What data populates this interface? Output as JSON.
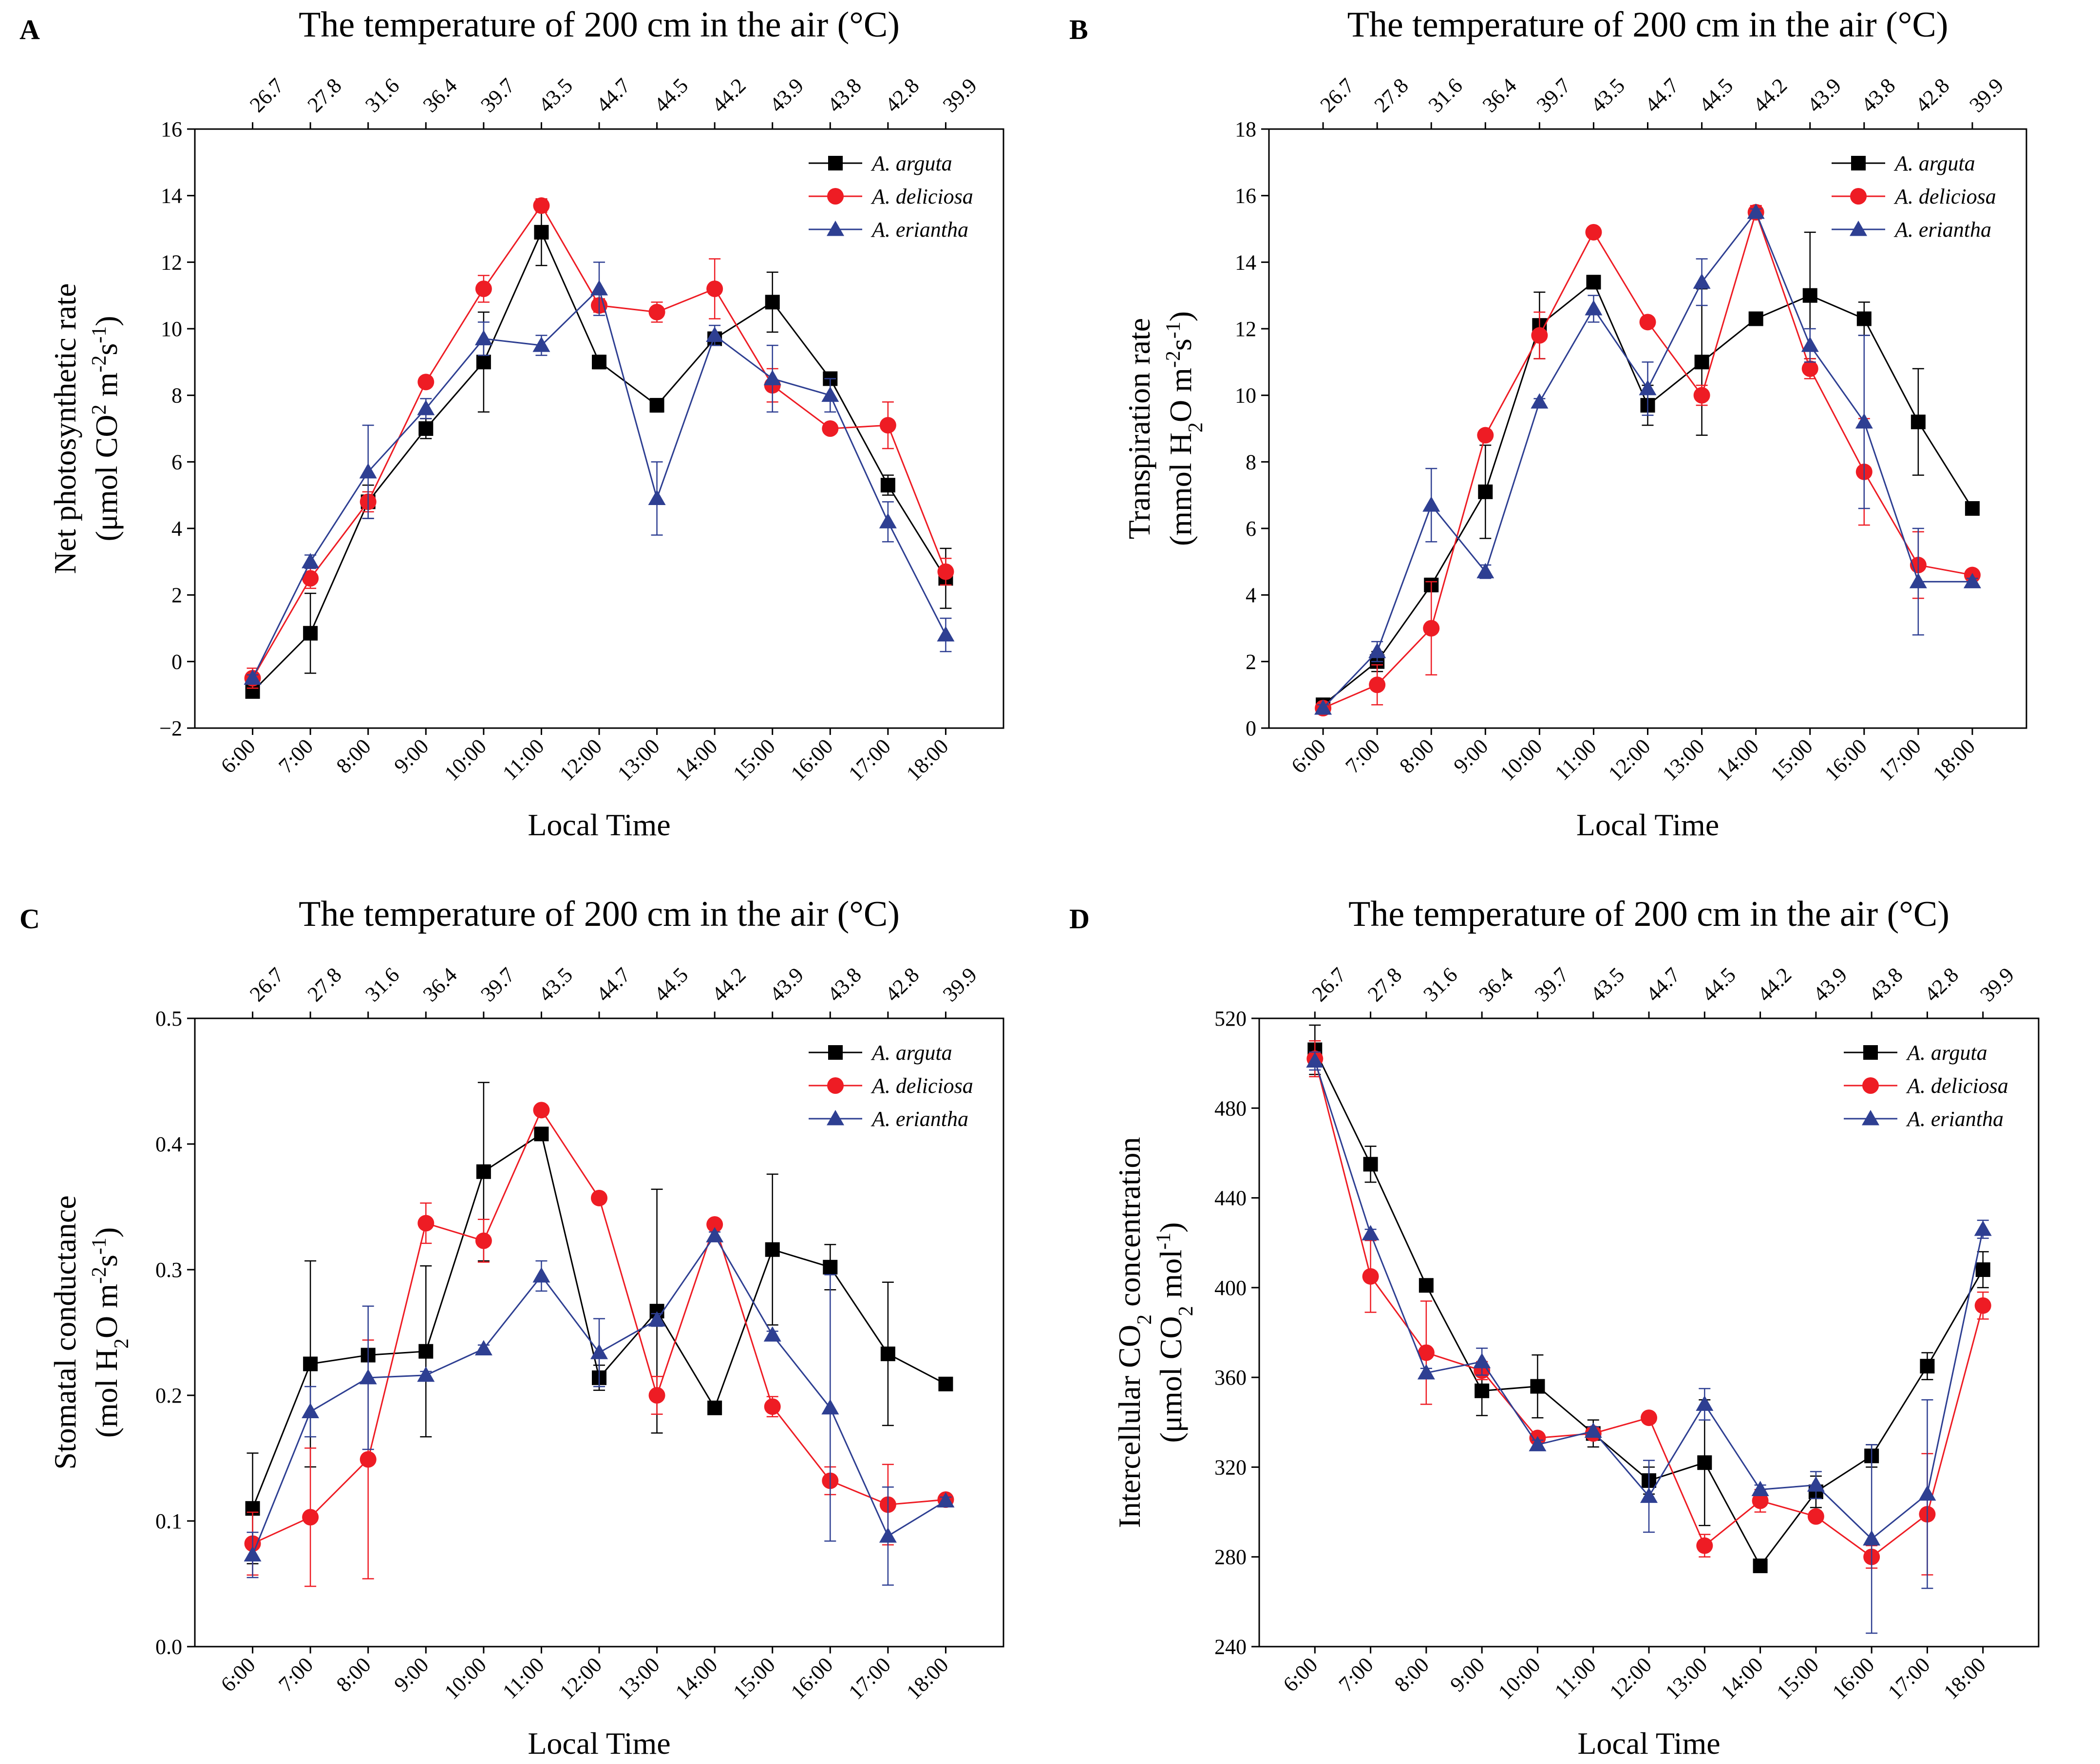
{
  "colors": {
    "arguta": "#000000",
    "deliciosa": "#ee1c24",
    "eriantha": "#2e3f92"
  },
  "chart_data": [
    {
      "panel": "A",
      "type": "line",
      "title": "The temperature of 200 cm in the air  (°C)",
      "top_ticks": [
        "26.7",
        "27.8",
        "31.6",
        "36.4",
        "39.7",
        "43.5",
        "44.7",
        "44.5",
        "44.2",
        "43.9",
        "43.8",
        "42.8",
        "39.9"
      ],
      "categories": [
        "6:00",
        "7:00",
        "8:00",
        "9:00",
        "10:00",
        "11:00",
        "12:00",
        "13:00",
        "14:00",
        "15:00",
        "16:00",
        "17:00",
        "18:00"
      ],
      "xlabel": "Local Time",
      "ylabel_lines": [
        "Net photosynthetic rate",
        "(μmol CO",
        "2",
        " m",
        "-2",
        "s",
        "-1",
        ")"
      ],
      "ylim": [
        -2,
        16
      ],
      "yticks": [
        -2,
        0,
        2,
        4,
        6,
        8,
        10,
        12,
        14,
        16
      ],
      "ytick_labels": [
        "−2",
        "0",
        "2",
        "4",
        "6",
        "8",
        "10",
        "12",
        "14",
        "16"
      ],
      "series": [
        {
          "name": "A. arguta",
          "marker": "square",
          "color": "#000000",
          "values": [
            -0.9,
            0.85,
            4.8,
            7.0,
            9.0,
            12.9,
            9.0,
            7.7,
            9.7,
            10.8,
            8.5,
            5.3,
            2.5
          ],
          "errors": [
            0.1,
            1.2,
            0.5,
            0.3,
            1.5,
            1.0,
            0.2,
            0.2,
            0.2,
            0.9,
            0.2,
            0.3,
            0.9
          ]
        },
        {
          "name": "A. deliciosa",
          "marker": "circle",
          "color": "#ee1c24",
          "values": [
            -0.5,
            2.5,
            4.8,
            8.4,
            11.2,
            13.7,
            10.7,
            10.5,
            11.2,
            8.3,
            7.0,
            7.1,
            2.7
          ],
          "errors": [
            0.3,
            0.3,
            0.3,
            0.1,
            0.4,
            0.2,
            0.2,
            0.3,
            0.9,
            0.5,
            0.1,
            0.7,
            0.4
          ]
        },
        {
          "name": "A. eriantha",
          "marker": "triangle",
          "color": "#2e3f92",
          "values": [
            -0.5,
            3.0,
            5.7,
            7.6,
            9.7,
            9.5,
            11.2,
            4.9,
            9.8,
            8.5,
            8.0,
            4.2,
            0.8
          ],
          "errors": [
            0.1,
            0.2,
            1.4,
            0.3,
            0.5,
            0.3,
            0.8,
            1.1,
            0.3,
            1.0,
            0.5,
            0.6,
            0.5
          ]
        }
      ],
      "legend": [
        "A. arguta",
        "A. deliciosa",
        "A. eriantha"
      ]
    },
    {
      "panel": "B",
      "type": "line",
      "title": "The temperature of 200 cm in the air  (°C)",
      "top_ticks": [
        "26.7",
        "27.8",
        "31.6",
        "36.4",
        "39.7",
        "43.5",
        "44.7",
        "44.5",
        "44.2",
        "43.9",
        "43.8",
        "42.8",
        "39.9"
      ],
      "categories": [
        "6:00",
        "7:00",
        "8:00",
        "9:00",
        "10:00",
        "11:00",
        "12:00",
        "13:00",
        "14:00",
        "15:00",
        "16:00",
        "17:00",
        "18:00"
      ],
      "xlabel": "Local Time",
      "ylabel_lines": [
        "Transpiration rate",
        "(mmol H",
        "2",
        "O m",
        "-2",
        "s",
        "-1",
        ")"
      ],
      "ylim": [
        0,
        18
      ],
      "yticks": [
        0,
        2,
        4,
        6,
        8,
        10,
        12,
        14,
        16,
        18
      ],
      "ytick_labels": [
        "0",
        "2",
        "4",
        "6",
        "8",
        "10",
        "12",
        "14",
        "16",
        "18"
      ],
      "series": [
        {
          "name": "A. arguta",
          "marker": "square",
          "color": "#000000",
          "values": [
            0.7,
            2.0,
            4.3,
            7.1,
            12.1,
            13.4,
            9.7,
            11.0,
            12.3,
            13.0,
            12.3,
            9.2,
            6.6
          ],
          "errors": [
            0.1,
            0.3,
            0.2,
            1.4,
            1.0,
            0.2,
            0.6,
            2.2,
            0.1,
            1.9,
            0.5,
            1.6,
            0.1
          ]
        },
        {
          "name": "A. deliciosa",
          "marker": "circle",
          "color": "#ee1c24",
          "values": [
            0.6,
            1.3,
            3.0,
            8.8,
            11.8,
            14.9,
            12.2,
            10.0,
            15.5,
            10.8,
            7.7,
            4.9,
            4.6
          ],
          "errors": [
            0.1,
            0.6,
            1.4,
            0.1,
            0.7,
            0.1,
            0.1,
            0.3,
            0.2,
            0.3,
            1.6,
            1.0,
            0.1
          ]
        },
        {
          "name": "A. eriantha",
          "marker": "triangle",
          "color": "#2e3f92",
          "values": [
            0.6,
            2.3,
            6.7,
            4.7,
            9.8,
            12.6,
            10.2,
            13.4,
            15.5,
            11.5,
            9.2,
            4.4,
            4.4
          ],
          "errors": [
            0.1,
            0.3,
            1.1,
            0.2,
            0.1,
            0.4,
            0.8,
            0.7,
            0.1,
            0.5,
            2.6,
            1.6,
            0.1
          ]
        }
      ],
      "legend": [
        "A. arguta",
        "A. deliciosa",
        "A. eriantha"
      ]
    },
    {
      "panel": "C",
      "type": "line",
      "title": "The temperature of 200 cm in the air  (°C)",
      "top_ticks": [
        "26.7",
        "27.8",
        "31.6",
        "36.4",
        "39.7",
        "43.5",
        "44.7",
        "44.5",
        "44.2",
        "43.9",
        "43.8",
        "42.8",
        "39.9"
      ],
      "categories": [
        "6:00",
        "7:00",
        "8:00",
        "9:00",
        "10:00",
        "11:00",
        "12:00",
        "13:00",
        "14:00",
        "15:00",
        "16:00",
        "17:00",
        "18:00"
      ],
      "xlabel": "Local Time",
      "ylabel_lines": [
        "Stomatal conductance",
        "(mol H",
        "2",
        "O m",
        "-2",
        "s",
        "-1",
        ")"
      ],
      "ylim": [
        0.0,
        0.5
      ],
      "yticks": [
        0.0,
        0.1,
        0.2,
        0.3,
        0.4,
        0.5
      ],
      "ytick_labels": [
        "0.0",
        "0.1",
        "0.2",
        "0.3",
        "0.4",
        "0.5"
      ],
      "series": [
        {
          "name": "A. arguta",
          "marker": "square",
          "color": "#000000",
          "values": [
            0.11,
            0.225,
            0.232,
            0.235,
            0.378,
            0.408,
            0.214,
            0.267,
            0.19,
            0.316,
            0.302,
            0.233,
            0.209
          ],
          "errors": [
            0.044,
            0.082,
            0.005,
            0.068,
            0.071,
            0.005,
            0.01,
            0.097,
            0.002,
            0.06,
            0.018,
            0.057,
            0.002
          ]
        },
        {
          "name": "A. deliciosa",
          "marker": "circle",
          "color": "#ee1c24",
          "values": [
            0.082,
            0.103,
            0.149,
            0.337,
            0.323,
            0.427,
            0.357,
            0.2,
            0.336,
            0.191,
            0.132,
            0.113,
            0.117
          ],
          "errors": [
            0.025,
            0.055,
            0.095,
            0.016,
            0.017,
            0.002,
            0.002,
            0.015,
            0.002,
            0.008,
            0.011,
            0.032,
            0.003
          ]
        },
        {
          "name": "A. eriantha",
          "marker": "triangle",
          "color": "#2e3f92",
          "values": [
            0.073,
            0.187,
            0.214,
            0.216,
            0.237,
            0.295,
            0.234,
            0.26,
            0.327,
            0.248,
            0.19,
            0.088,
            0.116
          ],
          "errors": [
            0.018,
            0.02,
            0.057,
            0.003,
            0.003,
            0.012,
            0.027,
            0.005,
            0.003,
            0.003,
            0.106,
            0.039,
            0.003
          ]
        }
      ],
      "legend": [
        "A. arguta",
        "A. deliciosa",
        "A. eriantha"
      ]
    },
    {
      "panel": "D",
      "type": "line",
      "title": "The temperature of 200 cm in the air  (°C)",
      "top_ticks": [
        "26.7",
        "27.8",
        "31.6",
        "36.4",
        "39.7",
        "43.5",
        "44.7",
        "44.5",
        "44.2",
        "43.9",
        "43.8",
        "42.8",
        "39.9"
      ],
      "categories": [
        "6:00",
        "7:00",
        "8:00",
        "9:00",
        "10:00",
        "11:00",
        "12:00",
        "13:00",
        "14:00",
        "15:00",
        "16:00",
        "17:00",
        "18:00"
      ],
      "xlabel": "Local Time",
      "ylabel_lines": [
        "Intercellular CO",
        "2",
        " concentration",
        "(μmol CO",
        "2",
        " mol",
        "-1",
        ")"
      ],
      "ylim": [
        240,
        520
      ],
      "yticks": [
        240,
        280,
        320,
        360,
        400,
        440,
        480,
        520
      ],
      "ytick_labels": [
        "240",
        "280",
        "320",
        "360",
        "400",
        "440",
        "480",
        "520"
      ],
      "series": [
        {
          "name": "A. arguta",
          "marker": "square",
          "color": "#000000",
          "values": [
            506,
            455,
            401,
            354,
            356,
            335,
            314,
            322,
            276,
            309,
            325,
            365,
            408
          ],
          "errors": [
            11,
            8,
            2,
            11,
            14,
            6,
            6,
            28,
            1,
            7,
            5,
            6,
            8
          ]
        },
        {
          "name": "A. deliciosa",
          "marker": "circle",
          "color": "#ee1c24",
          "values": [
            502,
            405,
            371,
            363,
            333,
            335,
            342,
            285,
            305,
            298,
            280,
            299,
            392
          ],
          "errors": [
            8,
            16,
            23,
            4,
            2,
            2,
            2,
            5,
            5,
            2,
            5,
            27,
            6
          ]
        },
        {
          "name": "A. eriantha",
          "marker": "triangle",
          "color": "#2e3f92",
          "values": [
            501,
            424,
            362,
            367,
            330,
            336,
            307,
            348,
            310,
            312,
            288,
            308,
            426
          ],
          "errors": [
            4,
            2,
            2,
            6,
            2,
            2,
            16,
            7,
            2,
            6,
            42,
            42,
            4
          ]
        }
      ],
      "legend": [
        "A. arguta",
        "A. deliciosa",
        "A. eriantha"
      ]
    }
  ],
  "panel_labels": [
    "A",
    "B",
    "C",
    "D"
  ]
}
